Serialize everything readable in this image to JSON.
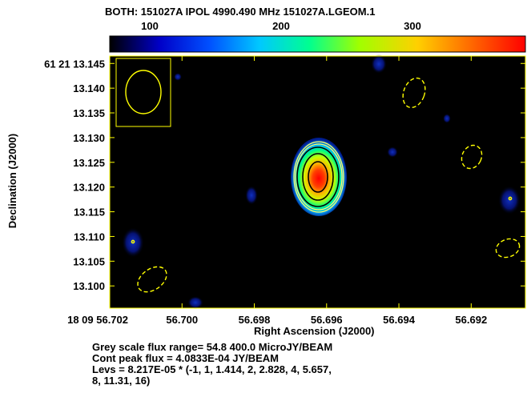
{
  "chart_data": {
    "type": "heatmap",
    "title": "BOTH: 151027A  IPOL  4990.490 MHz  151027A.LGEOM.1",
    "colorbar": {
      "ticks": [
        100,
        200,
        300
      ],
      "range": [
        54.8,
        400.0
      ],
      "colormap": [
        "#000000",
        "#0000c8",
        "#0050ff",
        "#00c8ff",
        "#00ff90",
        "#a0ff00",
        "#ffd000",
        "#ff6000",
        "#ff0000"
      ]
    },
    "xlabel": "Right Ascension (J2000)",
    "ylabel": "Declination (J2000)",
    "x_ticks": [
      "18 09 56.702",
      "56.700",
      "56.698",
      "56.696",
      "56.694",
      "56.692"
    ],
    "x_tick_values": [
      56.702,
      56.7,
      56.698,
      56.696,
      56.694,
      56.692
    ],
    "xlim": [
      56.702,
      56.6905
    ],
    "y_ticks": [
      "61 21 13.145",
      "13.140",
      "13.135",
      "13.130",
      "13.125",
      "13.120",
      "13.115",
      "13.110",
      "13.105",
      "13.100"
    ],
    "y_tick_values": [
      13.145,
      13.14,
      13.135,
      13.13,
      13.125,
      13.12,
      13.115,
      13.11,
      13.105,
      13.1
    ],
    "ylim": [
      13.0955,
      13.1465
    ],
    "source": {
      "ra": 56.6964,
      "dec": 13.1213,
      "peak_flux": "4.0833E-04 JY/BEAM"
    },
    "contour_levels": [
      -1,
      1,
      1.414,
      2,
      2.828,
      4,
      5.657,
      8,
      11.31,
      16
    ],
    "contour_base": "8.217E-05",
    "beam_box": true
  },
  "footer": {
    "line1": "Grey scale flux range= 54.8 400.0 MicroJY/BEAM",
    "line2": "Cont peak flux =  4.0833E-04 JY/BEAM",
    "line3": "Levs = 8.217E-05 * (-1, 1, 1.414, 2, 2.828, 4, 5.657,",
    "line4": "8, 11.31, 16)"
  }
}
